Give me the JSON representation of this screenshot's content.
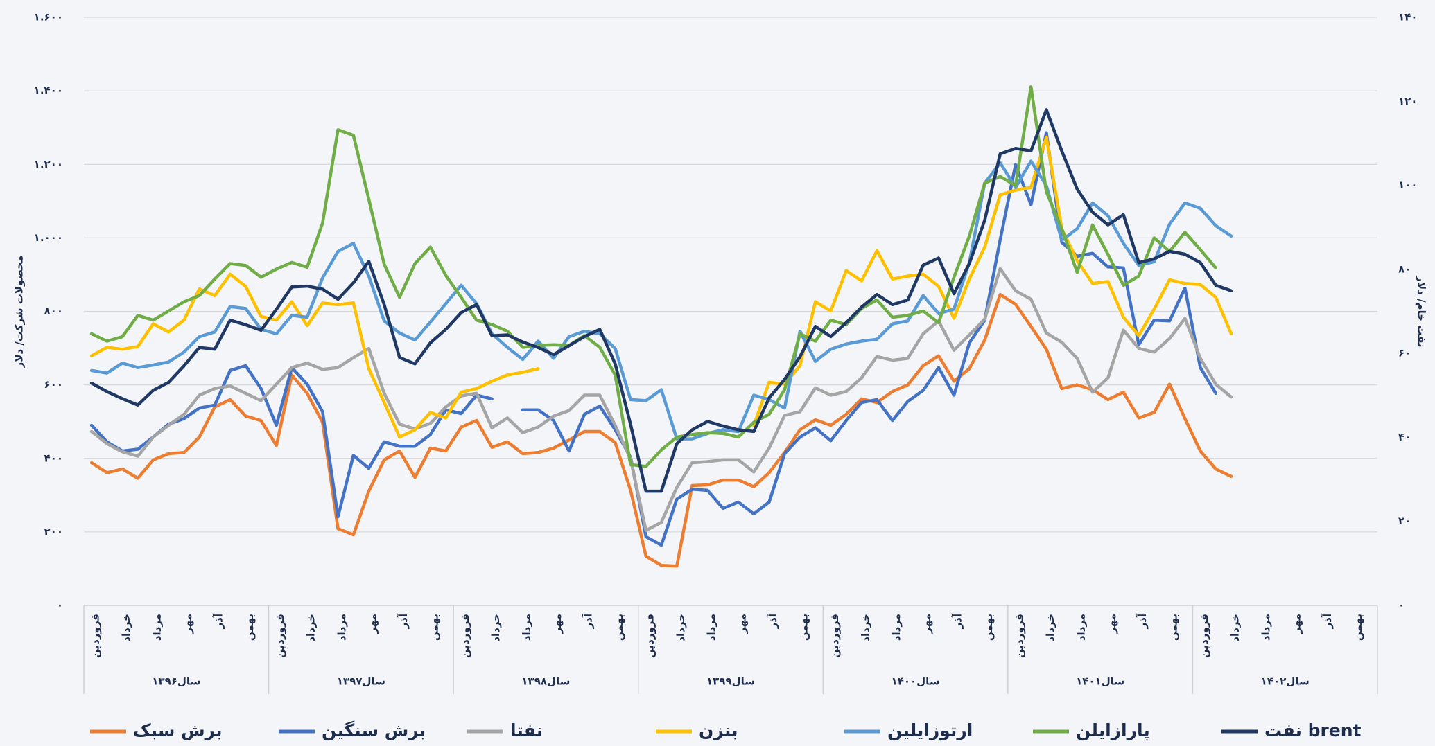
{
  "chart_data": {
    "type": "line",
    "ylabel": "محصولات شرکت/ دلار",
    "y2label": "نفت خام/ دلار",
    "categories": [
      "فروردین",
      null,
      "خرداد",
      null,
      "مرداد",
      null,
      "مهر",
      null,
      "آذر",
      null,
      "بهمن",
      null,
      "فروردین",
      null,
      "خرداد",
      null,
      "مرداد",
      null,
      "مهر",
      null,
      "آذر",
      null,
      "بهمن",
      null,
      "فروردین",
      null,
      "خرداد",
      null,
      "مرداد",
      null,
      "مهر",
      null,
      "آذر",
      null,
      "بهمن",
      null,
      "فروردین",
      null,
      "خرداد",
      null,
      "مرداد",
      null,
      "مهر",
      null,
      "آذر",
      null,
      "بهمن",
      null,
      "فروردین",
      null,
      "خرداد",
      null,
      "مرداد",
      null,
      "مهر",
      null,
      "آذر",
      null,
      "بهمن",
      null,
      "فروردین",
      null,
      "خرداد",
      null,
      "مرداد",
      null,
      "مهر",
      null,
      "آذر",
      null,
      "بهمن",
      null,
      "فروردین",
      null,
      "خرداد",
      null,
      "مرداد",
      null,
      "مهر",
      null,
      "آذر",
      null,
      "بهمن",
      null
    ],
    "year_labels": [
      "سال۱۳۹۶",
      "سال۱۳۹۷",
      "سال۱۳۹۸",
      "سال۱۳۹۹",
      "سال۱۴۰۰",
      "سال۱۴۰۱",
      "سال۱۴۰۲"
    ],
    "ylim": [
      0,
      1600
    ],
    "yticks": [
      {
        "value": 0,
        "label": "۰"
      },
      {
        "value": 200,
        "label": "۲۰۰"
      },
      {
        "value": 400,
        "label": "۴۰۰"
      },
      {
        "value": 600,
        "label": "۶۰۰"
      },
      {
        "value": 800,
        "label": "۸۰۰"
      },
      {
        "value": 1000,
        "label": "۱.۰۰۰"
      },
      {
        "value": 1200,
        "label": "۱.۲۰۰"
      },
      {
        "value": 1400,
        "label": "۱.۴۰۰"
      },
      {
        "value": 1600,
        "label": "۱.۶۰۰"
      }
    ],
    "y2lim": [
      0,
      140
    ],
    "y2ticks": [
      {
        "value": 0,
        "label": "۰"
      },
      {
        "value": 20,
        "label": "۲۰"
      },
      {
        "value": 40,
        "label": "۴۰"
      },
      {
        "value": 60,
        "label": "۶۰"
      },
      {
        "value": 80,
        "label": "۸۰"
      },
      {
        "value": 100,
        "label": "۱۰۰"
      },
      {
        "value": 120,
        "label": "۱۲۰"
      },
      {
        "value": 140,
        "label": "۱۴۰"
      }
    ],
    "grid": true,
    "legend": "bottom",
    "series": [
      {
        "name": "برش سبک",
        "color": "#ed7d31",
        "values": [
          388,
          361,
          371,
          346,
          396,
          413,
          416,
          458,
          540,
          560,
          515,
          503,
          435,
          627,
          577,
          498,
          209,
          192,
          311,
          396,
          420,
          348,
          428,
          420,
          485,
          503,
          430,
          445,
          413,
          416,
          428,
          450,
          473,
          473,
          443,
          313,
          134,
          109,
          107,
          326,
          328,
          341,
          341,
          323,
          361,
          416,
          478,
          505,
          490,
          520,
          562,
          552,
          582,
          600,
          652,
          679,
          610,
          644,
          722,
          846,
          819,
          759,
          697,
          590,
          600,
          587,
          560,
          580,
          510,
          525,
          602,
          508,
          420,
          371,
          351,
          null,
          null,
          null,
          null,
          null,
          null,
          null,
          null,
          null
        ]
      },
      {
        "name": "برش سنگین",
        "color": "#4472c4",
        "values": [
          490,
          445,
          420,
          425,
          458,
          493,
          508,
          537,
          545,
          639,
          652,
          590,
          490,
          647,
          602,
          527,
          241,
          408,
          373,
          445,
          433,
          433,
          465,
          532,
          522,
          572,
          562,
          null,
          532,
          532,
          503,
          420,
          520,
          542,
          478,
          403,
          187,
          164,
          289,
          316,
          313,
          264,
          281,
          249,
          281,
          413,
          458,
          483,
          448,
          503,
          552,
          560,
          503,
          555,
          585,
          647,
          572,
          714,
          776,
          995,
          1199,
          1090,
          1286,
          988,
          950,
          958,
          921,
          918,
          709,
          776,
          774,
          863,
          647,
          577,
          null,
          null,
          null,
          null,
          null,
          null,
          null,
          null,
          null,
          null
        ]
      },
      {
        "name": "نفتا",
        "color": "#a5a5a5",
        "values": [
          473,
          440,
          418,
          406,
          458,
          490,
          520,
          572,
          590,
          597,
          577,
          557,
          602,
          647,
          659,
          642,
          647,
          674,
          699,
          577,
          493,
          480,
          495,
          540,
          570,
          577,
          483,
          510,
          470,
          485,
          515,
          530,
          572,
          572,
          490,
          398,
          204,
          226,
          321,
          388,
          391,
          396,
          396,
          363,
          428,
          517,
          527,
          592,
          572,
          582,
          619,
          677,
          667,
          672,
          739,
          774,
          694,
          736,
          779,
          916,
          856,
          833,
          741,
          716,
          672,
          580,
          619,
          749,
          699,
          689,
          726,
          781,
          672,
          602,
          567,
          null,
          null,
          null,
          null,
          null,
          null,
          null,
          null,
          null
        ]
      },
      {
        "name": "بنزن",
        "color": "#ffc000",
        "values": [
          679,
          702,
          697,
          704,
          766,
          744,
          776,
          861,
          843,
          901,
          868,
          786,
          776,
          826,
          761,
          823,
          818,
          823,
          644,
          552,
          458,
          478,
          525,
          510,
          580,
          590,
          610,
          627,
          634,
          644,
          null,
          null,
          null,
          null,
          null,
          null,
          null,
          null,
          null,
          null,
          null,
          null,
          null,
          490,
          607,
          602,
          652,
          826,
          801,
          911,
          883,
          965,
          888,
          896,
          901,
          868,
          781,
          888,
          975,
          1117,
          1130,
          1137,
          1274,
          1025,
          938,
          876,
          881,
          784,
          734,
          806,
          886,
          876,
          873,
          838,
          739,
          null,
          null,
          null,
          null,
          null,
          null,
          null,
          null,
          null
        ]
      },
      {
        "name": "ارتوزایلین",
        "color": "#5b9bd5",
        "values": [
          639,
          632,
          659,
          647,
          654,
          662,
          689,
          731,
          744,
          813,
          808,
          751,
          739,
          789,
          784,
          891,
          963,
          985,
          896,
          774,
          741,
          722,
          771,
          821,
          871,
          821,
          739,
          702,
          669,
          719,
          672,
          731,
          746,
          739,
          699,
          560,
          557,
          587,
          453,
          453,
          468,
          478,
          473,
          572,
          560,
          537,
          746,
          664,
          697,
          711,
          719,
          724,
          766,
          774,
          843,
          794,
          806,
          933,
          1149,
          1204,
          1137,
          1209,
          1142,
          993,
          1025,
          1095,
          1060,
          985,
          925,
          935,
          1037,
          1095,
          1080,
          1033,
          1005,
          null,
          null,
          null,
          null,
          null,
          null,
          null,
          null,
          null
        ]
      },
      {
        "name": "پارازایلن",
        "color": "#70ad47",
        "values": [
          739,
          719,
          731,
          789,
          776,
          801,
          826,
          843,
          888,
          930,
          925,
          893,
          915,
          933,
          920,
          1040,
          1294,
          1279,
          1105,
          928,
          838,
          930,
          975,
          898,
          838,
          776,
          764,
          746,
          702,
          707,
          709,
          707,
          734,
          702,
          627,
          383,
          378,
          423,
          458,
          465,
          470,
          468,
          458,
          498,
          520,
          587,
          739,
          719,
          776,
          764,
          808,
          831,
          784,
          789,
          801,
          769,
          893,
          1005,
          1149,
          1167,
          1142,
          1411,
          1125,
          1025,
          906,
          1035,
          955,
          871,
          896,
          1000,
          963,
          1015,
          968,
          918,
          null,
          null,
          null,
          null,
          null,
          null,
          null,
          null,
          null,
          null
        ]
      },
      {
        "name": "نفت brent",
        "color": "#203864",
        "axis": "y2",
        "values": [
          52.9,
          50.9,
          49.2,
          47.7,
          51.2,
          53.1,
          57.0,
          61.4,
          61.0,
          67.9,
          66.8,
          65.5,
          70.5,
          75.8,
          76.0,
          75.3,
          72.9,
          76.8,
          81.9,
          71.6,
          59.0,
          57.5,
          62.5,
          65.7,
          69.7,
          71.6,
          64.2,
          64.4,
          62.7,
          61.4,
          59.7,
          61.8,
          64.0,
          65.7,
          57.5,
          43.1,
          27.2,
          27.2,
          38.5,
          41.8,
          43.8,
          42.7,
          41.8,
          41.4,
          49.4,
          53.8,
          59.2,
          66.4,
          64.0,
          67.3,
          71.0,
          74.0,
          71.6,
          72.7,
          81.0,
          82.7,
          74.2,
          81.4,
          91.7,
          107.5,
          108.8,
          108.2,
          118.0,
          108.2,
          99.1,
          93.6,
          90.6,
          93.0,
          81.6,
          82.5,
          84.3,
          83.6,
          81.6,
          76.2,
          74.9,
          null,
          null,
          null,
          null,
          null,
          null,
          null,
          null,
          null
        ]
      }
    ]
  }
}
